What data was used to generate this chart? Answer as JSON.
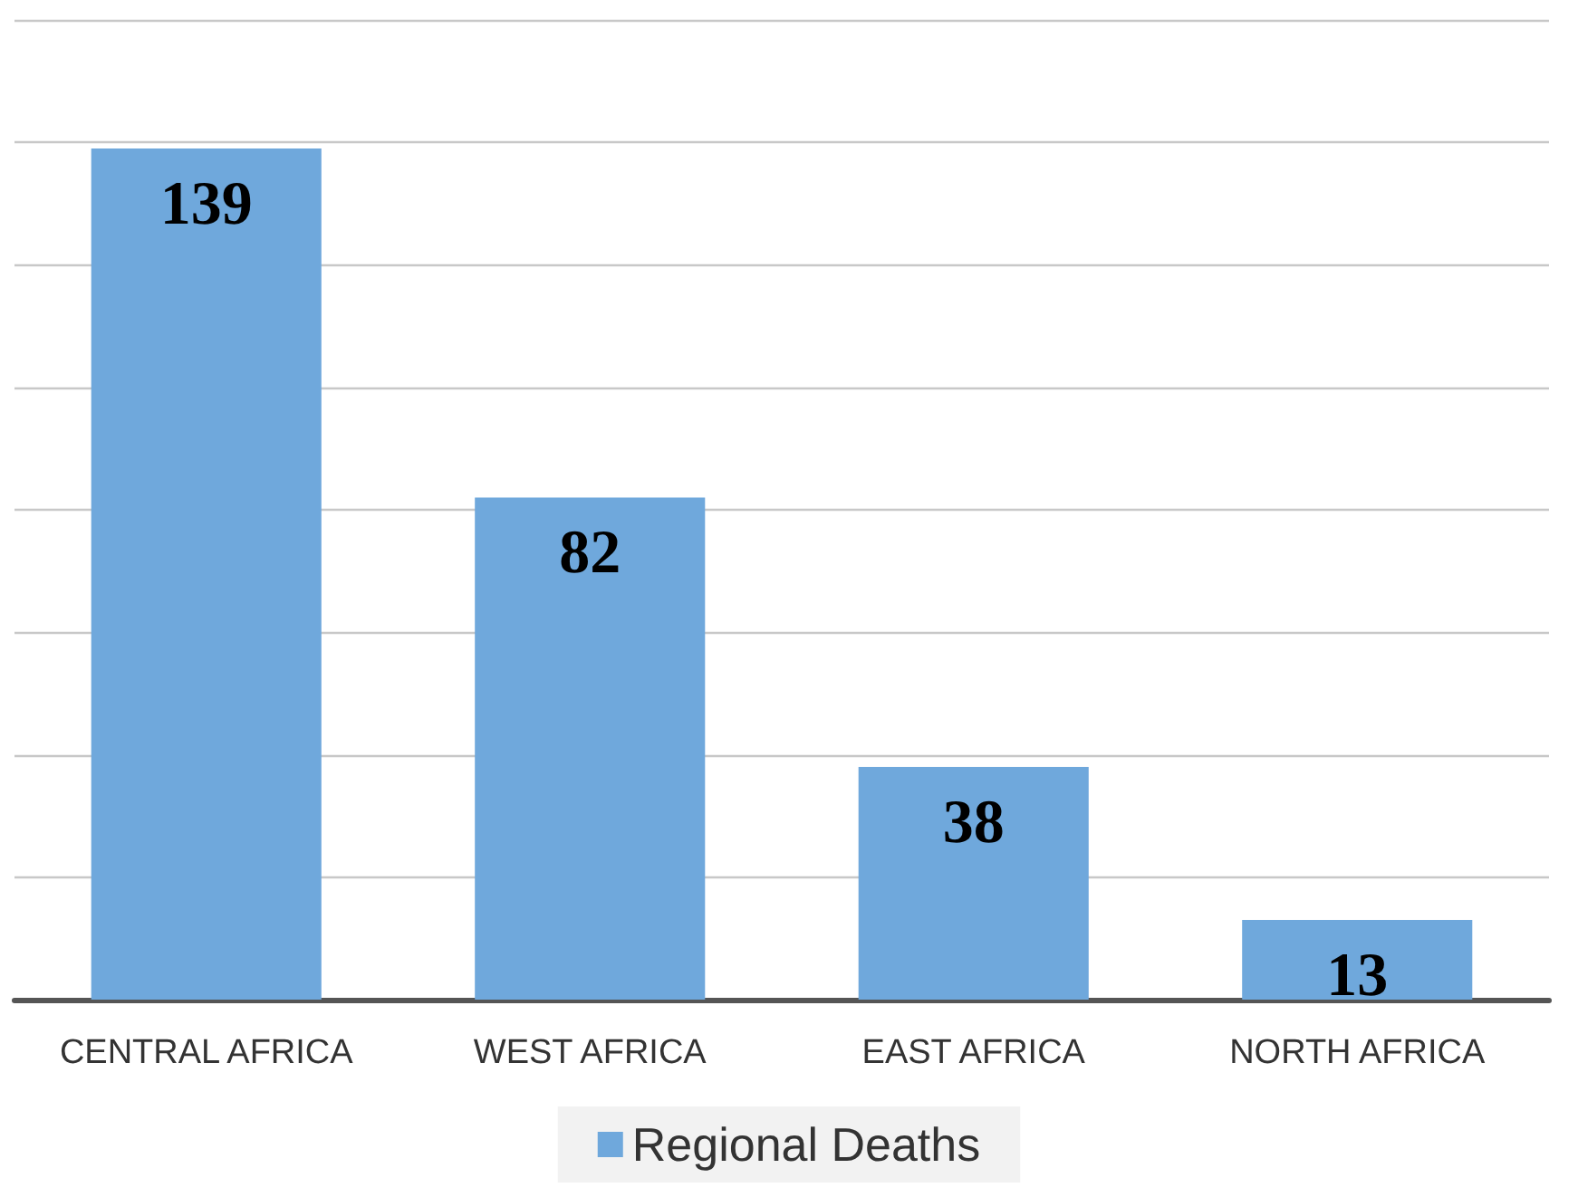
{
  "chart_data": {
    "type": "bar",
    "categories": [
      "CENTRAL AFRICA",
      "WEST AFRICA",
      "EAST AFRICA",
      "NORTH AFRICA"
    ],
    "series": [
      {
        "name": "Regional Deaths",
        "color": "#6fa8dc",
        "values": [
          139,
          82,
          38,
          13
        ]
      }
    ],
    "ylim": [
      0,
      160
    ],
    "yticks": [
      {
        "value": 0,
        "label": null
      },
      {
        "value": 20,
        "label": null
      },
      {
        "value": 40,
        "label": null
      },
      {
        "value": 60,
        "label": null
      },
      {
        "value": 80,
        "label": null
      },
      {
        "value": 100,
        "label": null
      },
      {
        "value": 120,
        "label": null
      },
      {
        "value": 140,
        "label": null
      },
      {
        "value": 160,
        "label": null
      }
    ],
    "tick_labels": "x",
    "grid": "y",
    "legend": "bottom",
    "data_labels": true
  }
}
